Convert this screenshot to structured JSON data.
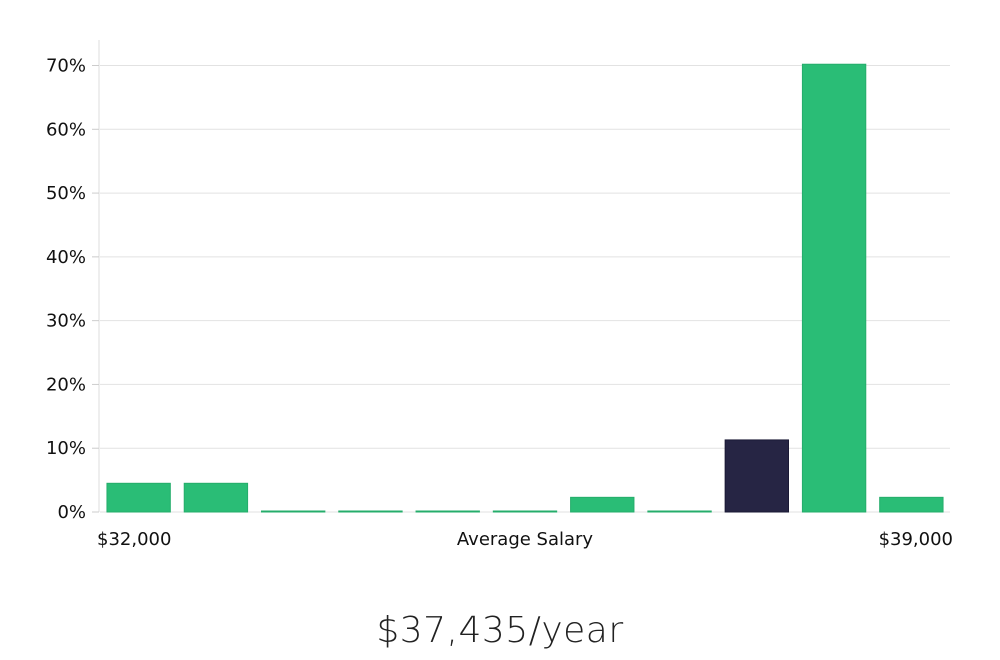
{
  "chart_data": {
    "type": "bar",
    "title": "",
    "xlabel": "Average Salary",
    "ylabel": "",
    "x_range_labels": {
      "start": "$32,000",
      "end": "$39,000"
    },
    "y_ticks": [
      "0%",
      "10%",
      "20%",
      "30%",
      "40%",
      "50%",
      "60%",
      "70%"
    ],
    "y_tick_values": [
      0,
      10,
      20,
      30,
      40,
      50,
      60,
      70
    ],
    "ylim": [
      0,
      74
    ],
    "grid": true,
    "legend": "none",
    "values": [
      4.5,
      4.5,
      0.1,
      0.1,
      0.1,
      0.1,
      2.3,
      0.1,
      11.3,
      70.2,
      2.3
    ],
    "highlight_index": 8,
    "colors": {
      "bar": "#2abd76",
      "bar_stroke": "#25ad6b",
      "highlight": "#262544",
      "grid": "#e2e2e2",
      "axis": "#dddddd"
    }
  },
  "salary": {
    "display": "$37,435/year"
  }
}
